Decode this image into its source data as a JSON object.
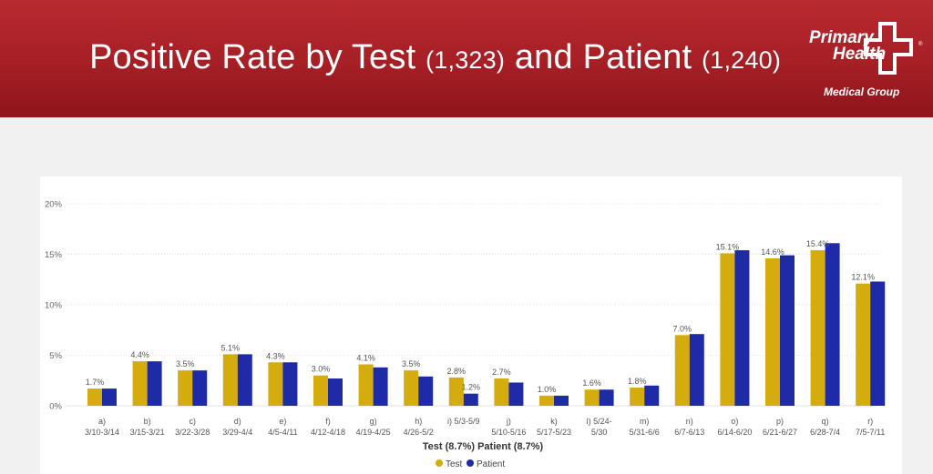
{
  "header": {
    "title_main": "Positive Rate by Test",
    "title_count_test": "(1,323)",
    "title_and": "and Patient",
    "title_count_patient": "(1,240)",
    "logo_line1": "Primary",
    "logo_line2": "Health",
    "logo_line3": "Medical Group",
    "logo_registered": "®"
  },
  "colors": {
    "banner": "#a51f25",
    "test": "#d4ac0d",
    "patient": "#1f2aa6"
  },
  "chart_data": {
    "type": "bar",
    "title": "Positive Rate by Test (1,323) and Patient (1,240)",
    "xlabel": "Test (8.7%) Patient (8.7%)",
    "ylabel": "",
    "ylim": [
      0,
      20
    ],
    "yticks": [
      "0%",
      "5%",
      "10%",
      "15%",
      "20%"
    ],
    "grid": true,
    "legend_position": "bottom-center",
    "categories": [
      [
        "a)",
        "3/10-3/14"
      ],
      [
        "b)",
        "3/15-3/21"
      ],
      [
        "c)",
        "3/22-3/28"
      ],
      [
        "d)",
        "3/29-4/4"
      ],
      [
        "e)",
        "4/5-4/11"
      ],
      [
        "f)",
        "4/12-4/18"
      ],
      [
        "g)",
        "4/19-4/25"
      ],
      [
        "h)",
        "4/26-5/2"
      ],
      [
        "i) 5/3-5/9",
        ""
      ],
      [
        "j)",
        "5/10-5/16"
      ],
      [
        "k)",
        "5/17-5/23"
      ],
      [
        "l) 5/24-",
        "5/30"
      ],
      [
        "m)",
        "5/31-6/6"
      ],
      [
        "n)",
        "6/7-6/13"
      ],
      [
        "o)",
        "6/14-6/20"
      ],
      [
        "p)",
        "6/21-6/27"
      ],
      [
        "q)",
        "6/28-7/4"
      ],
      [
        "r)",
        "7/5-7/11"
      ]
    ],
    "series": [
      {
        "name": "Test",
        "values": [
          1.7,
          4.4,
          3.5,
          5.1,
          4.3,
          3.0,
          4.1,
          3.5,
          2.8,
          2.7,
          1.0,
          1.6,
          1.8,
          7.0,
          15.1,
          14.6,
          15.4,
          12.1
        ],
        "labels": [
          "1.7%",
          "4.4%",
          "3.5%",
          "5.1%",
          "4.3%",
          "3.0%",
          "4.1%",
          "3.5%",
          "2.8%",
          "2.7%",
          "1.0%",
          "1.6%",
          "1.8%",
          "7.0%",
          "15.1%",
          "14.6%",
          "15.4%",
          "12.1%"
        ]
      },
      {
        "name": "Patient",
        "values": [
          1.7,
          4.4,
          3.5,
          5.1,
          4.3,
          2.7,
          3.8,
          2.9,
          1.2,
          2.3,
          1.0,
          1.6,
          2.0,
          7.1,
          15.4,
          14.9,
          16.1,
          12.3
        ],
        "labels": [
          "",
          "",
          "",
          "",
          "",
          "",
          "",
          "",
          "1.2%",
          "",
          "",
          "",
          "",
          "",
          "",
          "",
          "",
          ""
        ]
      }
    ]
  }
}
